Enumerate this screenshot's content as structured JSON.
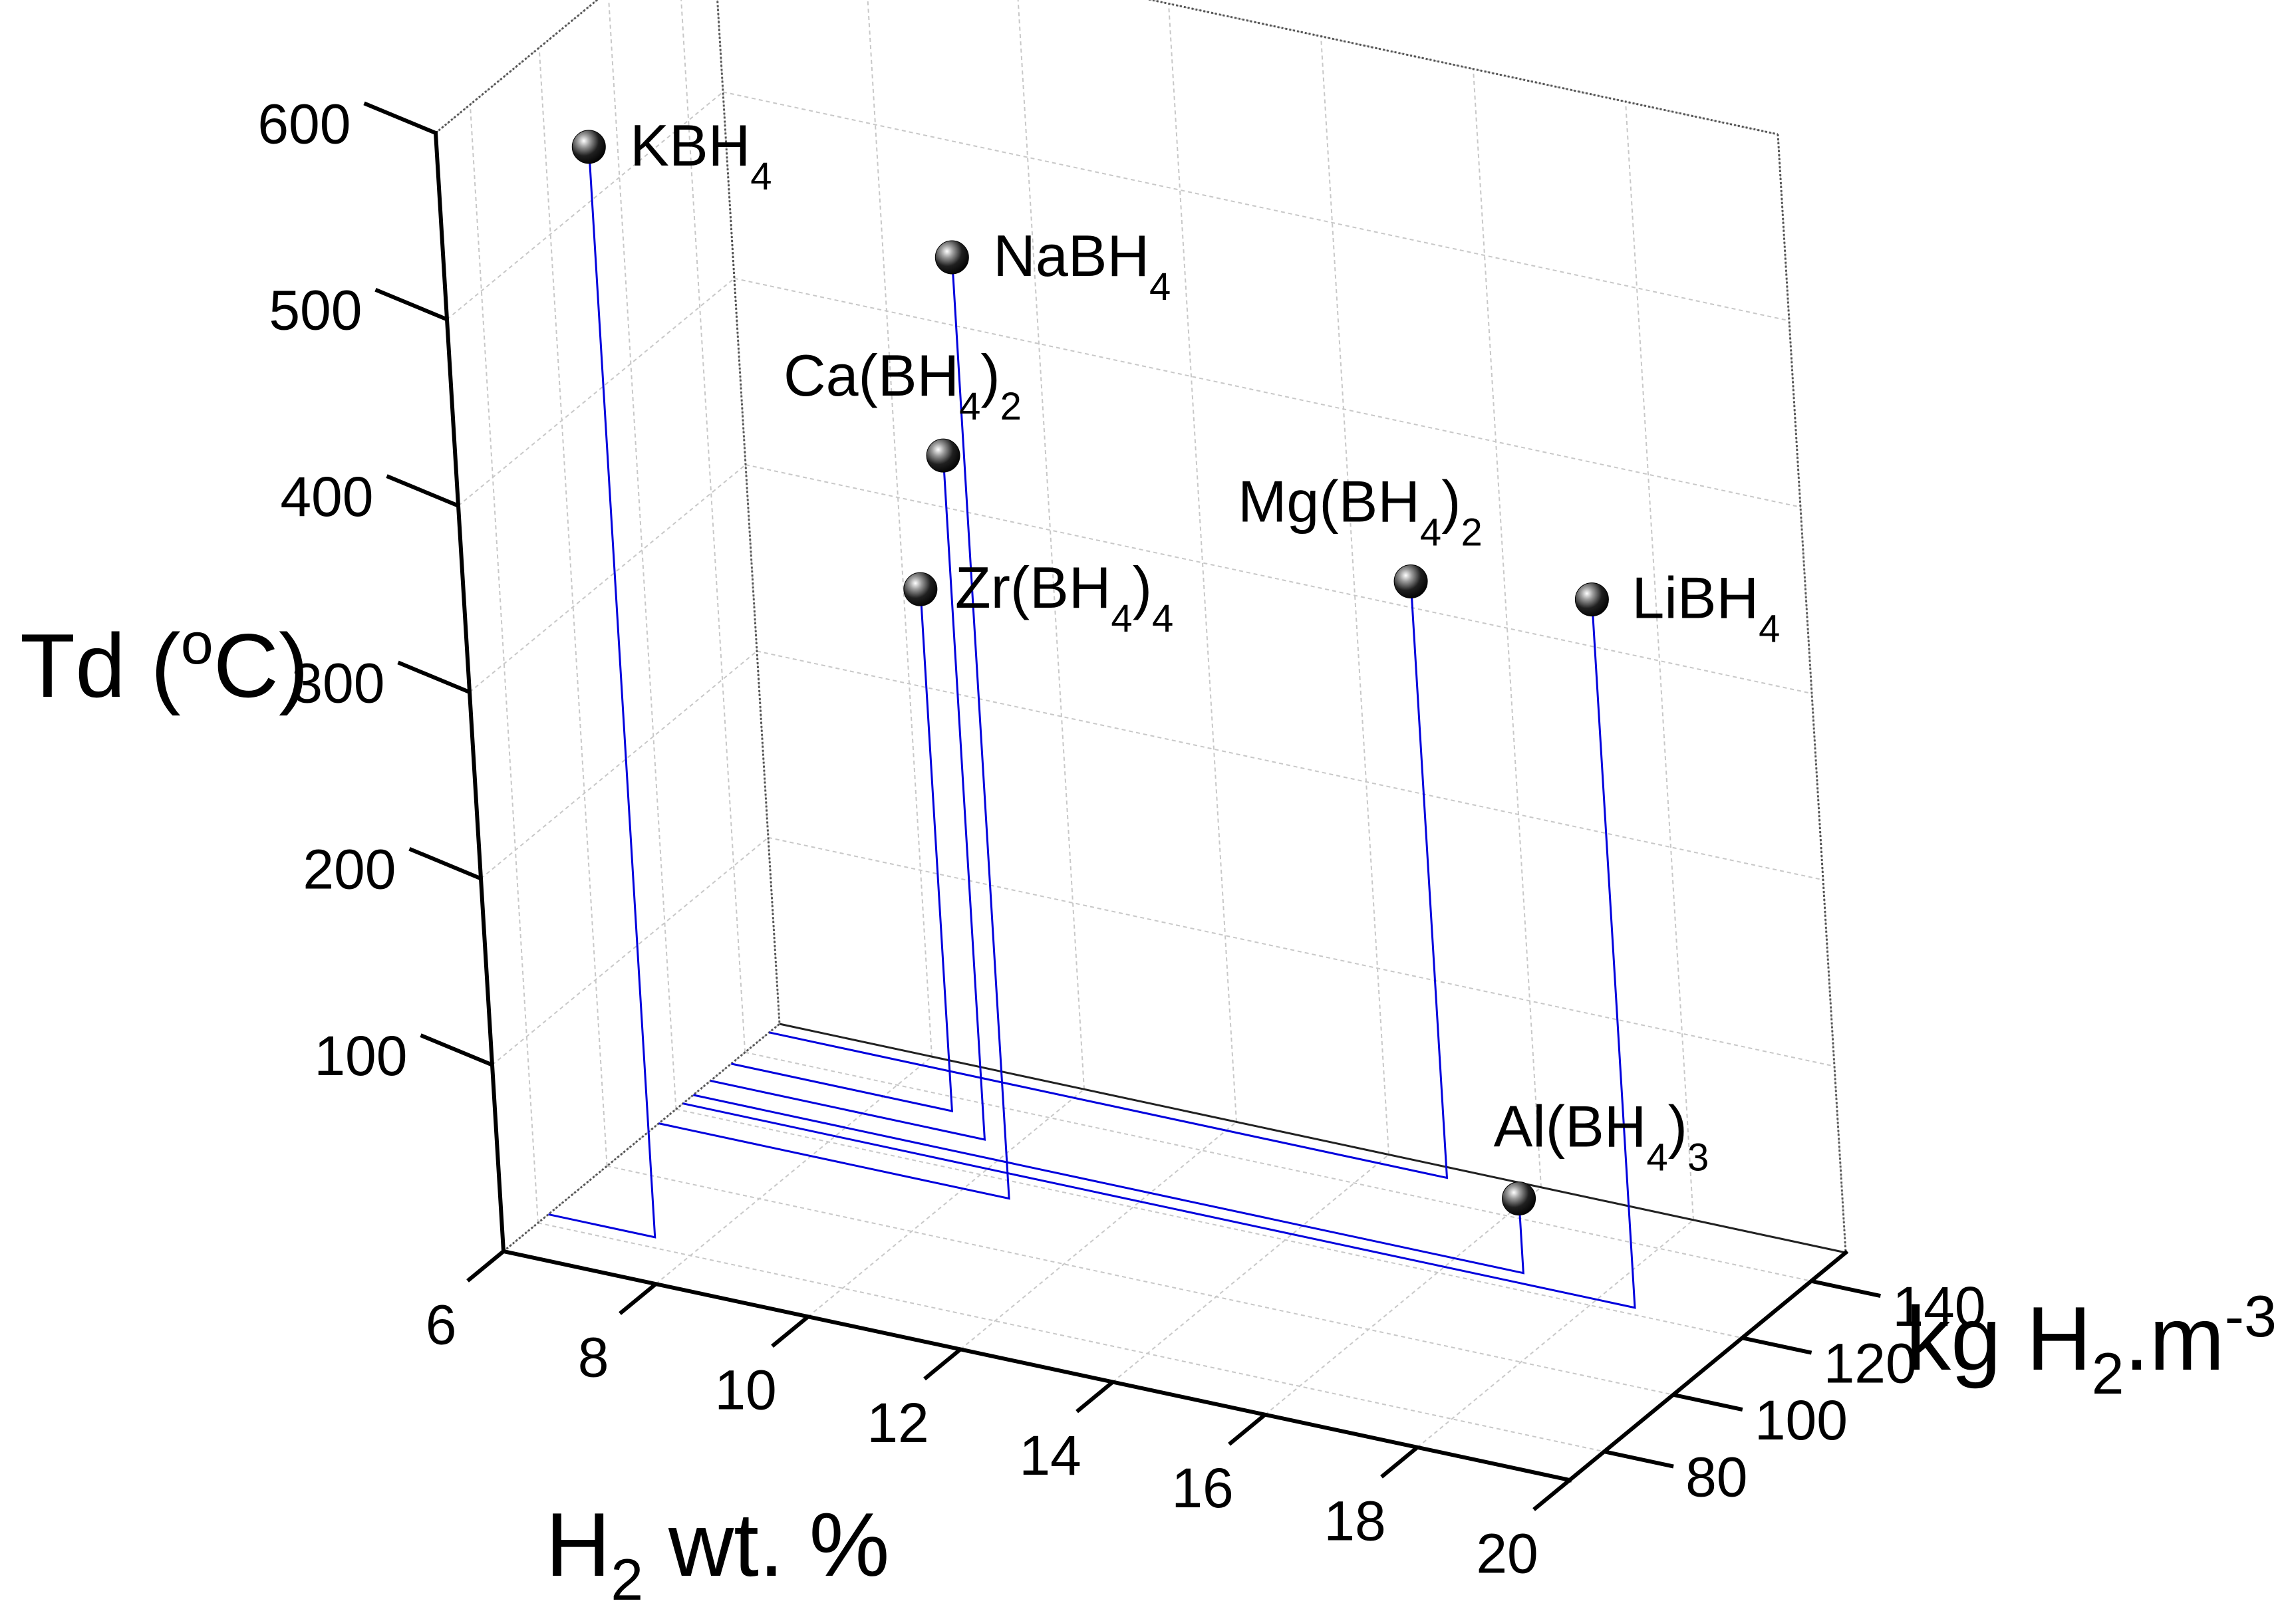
{
  "chart_data": {
    "type": "scatter3d",
    "title": "",
    "xlabel": {
      "base": "H",
      "sub": "2",
      "rest": " wt. %"
    },
    "ylabel": {
      "pre": "kg H",
      "sub": "2",
      "mid": ".m",
      "sup": "-3"
    },
    "zlabel": {
      "pre": "Td (",
      "sup": "o",
      "post": "C)"
    },
    "xlim": [
      6,
      20
    ],
    "ylim": [
      70,
      150
    ],
    "zlim": [
      0,
      600
    ],
    "xticks": [
      "6",
      "8",
      "10",
      "12",
      "14",
      "16",
      "18",
      "20"
    ],
    "yticks": [
      "80",
      "100",
      "120",
      "140"
    ],
    "zticks": [
      "100",
      "200",
      "300",
      "400",
      "500",
      "600"
    ],
    "points": [
      {
        "label": "KBH",
        "sub": "4",
        "sub2": "",
        "x": 7.4,
        "y": 83,
        "z": 585
      },
      {
        "label": "NaBH",
        "sub": "4",
        "sub2": "",
        "x": 10.6,
        "y": 115,
        "z": 505
      },
      {
        "label": "Ca(BH",
        "sub": "4",
        "sub2": "2",
        "x": 9.6,
        "y": 130,
        "z": 367
      },
      {
        "label": "Mg(BH",
        "sub": "4",
        "sub2": "2",
        "x": 14.9,
        "y": 147,
        "z": 320
      },
      {
        "label": "LiBH",
        "sub": "4",
        "sub2": "",
        "x": 18.5,
        "y": 122,
        "z": 380
      },
      {
        "label": "Zr(BH",
        "sub": "4",
        "sub2": "4",
        "x": 8.9,
        "y": 136,
        "z": 280
      },
      {
        "label": "Al(BH",
        "sub": "4",
        "sub2": "3",
        "x": 16.9,
        "y": 125,
        "z": 40
      }
    ],
    "colors": {
      "stem": "#0000dd",
      "axis": "#000000",
      "grid": "#c8c8c8"
    }
  }
}
